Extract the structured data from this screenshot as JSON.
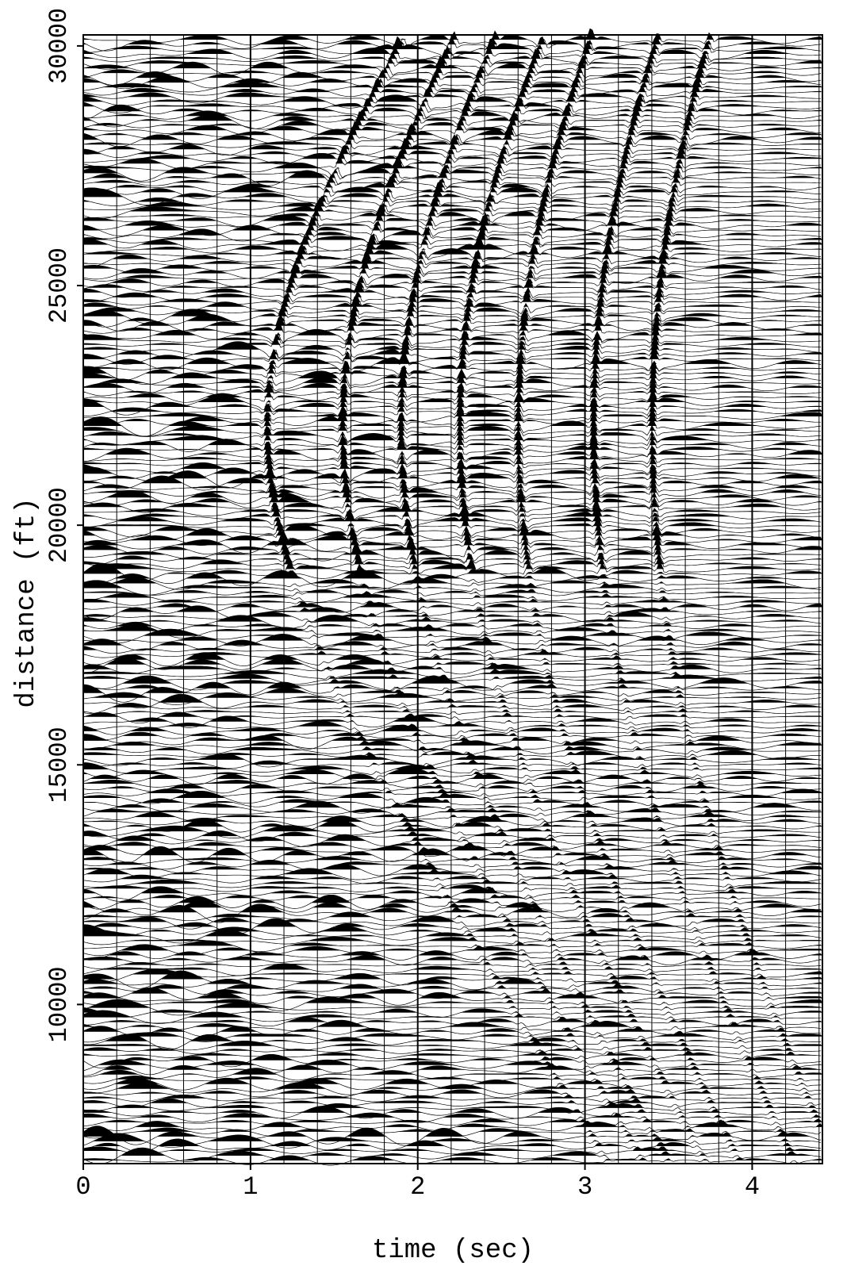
{
  "chart_data": {
    "type": "wiggle",
    "xlabel": "time (sec)",
    "ylabel": "distance (ft)",
    "xlim": [
      0,
      4.42
    ],
    "ylim": [
      6680,
      30230
    ],
    "xticks": [
      0,
      1,
      2,
      3,
      4
    ],
    "xminor": [
      0.2,
      0.4,
      0.6,
      0.8,
      1.2,
      1.4,
      1.6,
      1.8,
      2.2,
      2.4,
      2.6,
      2.8,
      3.2,
      3.4,
      3.6,
      3.8,
      4.2,
      4.4
    ],
    "yticks": [
      10000,
      15000,
      20000,
      25000,
      30000
    ],
    "color": "#000000"
  }
}
